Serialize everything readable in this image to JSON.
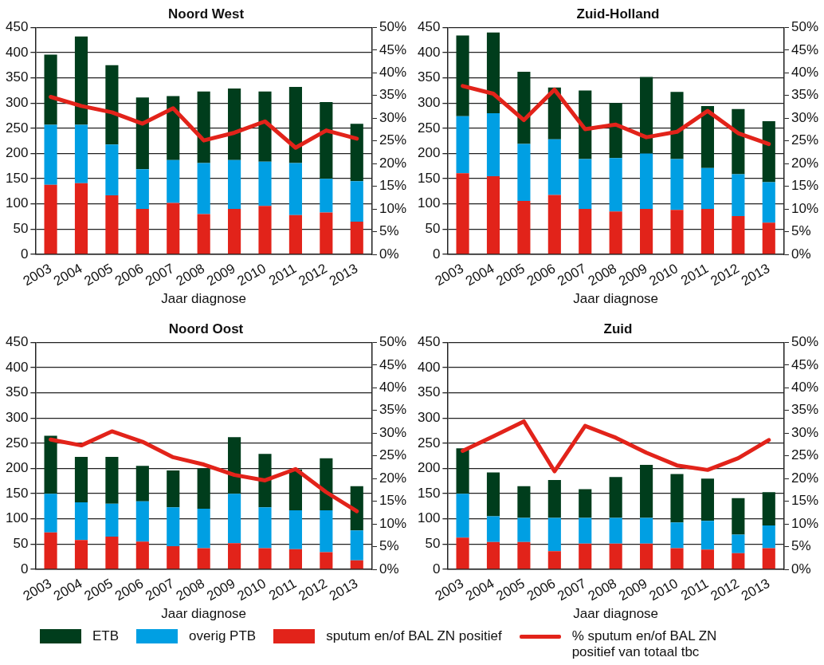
{
  "chart_data": [
    {
      "type": "bar",
      "title": "Noord West",
      "xlabel": "Jaar diagnose",
      "stacked": true,
      "grid": "y",
      "legend": "bottom",
      "categories": [
        "2003",
        "2004",
        "2005",
        "2006",
        "2007",
        "2008",
        "2009",
        "2010",
        "2011",
        "2012",
        "2013"
      ],
      "ylim": [
        0,
        450
      ],
      "yticks": [
        0,
        50,
        100,
        150,
        200,
        250,
        300,
        350,
        400,
        450
      ],
      "y2lim": [
        0,
        50
      ],
      "y2ticks": [
        {
          "value": 0,
          "label": "0%"
        },
        {
          "value": 5,
          "label": "5%"
        },
        {
          "value": 10,
          "label": "10%"
        },
        {
          "value": 15,
          "label": "15%"
        },
        {
          "value": 20,
          "label": "20%"
        },
        {
          "value": 25,
          "label": "25%"
        },
        {
          "value": 30,
          "label": "30%"
        },
        {
          "value": 35,
          "label": "35%"
        },
        {
          "value": 40,
          "label": "40%"
        },
        {
          "value": 45,
          "label": "45%"
        },
        {
          "value": 50,
          "label": "50%"
        }
      ],
      "series": [
        {
          "name": "sputum en/of BAL ZN positief",
          "color": "#e2231a",
          "values": [
            138,
            141,
            117,
            90,
            102,
            80,
            90,
            96,
            78,
            83,
            65
          ]
        },
        {
          "name": "overig PTB",
          "color": "#009fe3",
          "values": [
            119,
            116,
            101,
            79,
            85,
            101,
            97,
            88,
            103,
            67,
            80
          ]
        },
        {
          "name": "ETB",
          "color": "#003d1c",
          "values": [
            139,
            175,
            157,
            142,
            127,
            142,
            142,
            139,
            151,
            152,
            114
          ]
        },
        {
          "name": "% sputum en/of BAL ZN positief van totaal tbc",
          "type": "line",
          "axis": "y2",
          "color": "#e2231a",
          "values": [
            34.7,
            32.7,
            31.3,
            28.8,
            32.2,
            25.1,
            26.8,
            29.3,
            23.5,
            27.3,
            25.5
          ]
        }
      ]
    },
    {
      "type": "bar",
      "title": "Zuid-Holland",
      "xlabel": "Jaar diagnose",
      "stacked": true,
      "grid": "y",
      "categories": [
        "2003",
        "2004",
        "2005",
        "2006",
        "2007",
        "2008",
        "2009",
        "2010",
        "2011",
        "2012",
        "2013"
      ],
      "ylim": [
        0,
        450
      ],
      "yticks": [
        0,
        50,
        100,
        150,
        200,
        250,
        300,
        350,
        400,
        450
      ],
      "y2lim": [
        0,
        50
      ],
      "y2ticks": [
        {
          "value": 0,
          "label": "0%"
        },
        {
          "value": 5,
          "label": "5%"
        },
        {
          "value": 10,
          "label": "10%"
        },
        {
          "value": 15,
          "label": "15%"
        },
        {
          "value": 20,
          "label": "20%"
        },
        {
          "value": 25,
          "label": "25%"
        },
        {
          "value": 30,
          "label": "30%"
        },
        {
          "value": 35,
          "label": "35%"
        },
        {
          "value": 40,
          "label": "40%"
        },
        {
          "value": 45,
          "label": "45%"
        },
        {
          "value": 50,
          "label": "50%"
        }
      ],
      "series": [
        {
          "color": "#e2231a",
          "values": [
            161,
            155,
            106,
            118,
            90,
            85,
            90,
            88,
            90,
            76,
            63
          ]
        },
        {
          "color": "#009fe3",
          "values": [
            113,
            125,
            113,
            110,
            99,
            106,
            110,
            101,
            81,
            83,
            80
          ]
        },
        {
          "color": "#003d1c",
          "values": [
            160,
            160,
            143,
            103,
            136,
            109,
            152,
            133,
            123,
            129,
            121
          ]
        },
        {
          "type": "line",
          "axis": "y2",
          "color": "#e2231a",
          "values": [
            37.1,
            35.4,
            29.6,
            36.3,
            27.6,
            28.6,
            25.8,
            27.0,
            31.6,
            26.7,
            24.3
          ]
        }
      ]
    },
    {
      "type": "bar",
      "title": "Noord Oost",
      "xlabel": "Jaar diagnose",
      "stacked": true,
      "grid": "y",
      "categories": [
        "2003",
        "2004",
        "2005",
        "2006",
        "2007",
        "2008",
        "2009",
        "2010",
        "2011",
        "2012",
        "2013"
      ],
      "ylim": [
        0,
        450
      ],
      "yticks": [
        0,
        50,
        100,
        150,
        200,
        250,
        300,
        350,
        400,
        450
      ],
      "y2lim": [
        0,
        50
      ],
      "y2ticks": [
        {
          "value": 0,
          "label": "0%"
        },
        {
          "value": 5,
          "label": "5%"
        },
        {
          "value": 10,
          "label": "10%"
        },
        {
          "value": 15,
          "label": "15%"
        },
        {
          "value": 20,
          "label": "20%"
        },
        {
          "value": 25,
          "label": "25%"
        },
        {
          "value": 30,
          "label": "30%"
        },
        {
          "value": 35,
          "label": "35%"
        },
        {
          "value": 40,
          "label": "40%"
        },
        {
          "value": 45,
          "label": "45%"
        },
        {
          "value": 50,
          "label": "50%"
        }
      ],
      "series": [
        {
          "color": "#e2231a",
          "values": [
            73,
            58,
            65,
            55,
            46,
            42,
            52,
            42,
            40,
            34,
            18
          ]
        },
        {
          "color": "#009fe3",
          "values": [
            77,
            75,
            65,
            80,
            77,
            78,
            98,
            81,
            77,
            83,
            59
          ]
        },
        {
          "color": "#003d1c",
          "values": [
            115,
            90,
            93,
            70,
            73,
            80,
            112,
            106,
            81,
            103,
            88
          ]
        },
        {
          "type": "line",
          "axis": "y2",
          "color": "#e2231a",
          "values": [
            28.6,
            27.3,
            30.4,
            28.1,
            24.7,
            23.1,
            20.8,
            19.6,
            22.1,
            17.0,
            12.8
          ]
        }
      ]
    },
    {
      "type": "bar",
      "title": "Zuid",
      "xlabel": "Jaar diagnose",
      "stacked": true,
      "grid": "y",
      "categories": [
        "2003",
        "2004",
        "2005",
        "2006",
        "2007",
        "2008",
        "2009",
        "2010",
        "2011",
        "2012",
        "2013"
      ],
      "ylim": [
        0,
        450
      ],
      "yticks": [
        0,
        50,
        100,
        150,
        200,
        250,
        300,
        350,
        400,
        450
      ],
      "y2lim": [
        0,
        50
      ],
      "y2ticks": [
        {
          "value": 0,
          "label": "0%"
        },
        {
          "value": 5,
          "label": "5%"
        },
        {
          "value": 10,
          "label": "10%"
        },
        {
          "value": 15,
          "label": "15%"
        },
        {
          "value": 20,
          "label": "20%"
        },
        {
          "value": 25,
          "label": "25%"
        },
        {
          "value": 30,
          "label": "30%"
        },
        {
          "value": 35,
          "label": "35%"
        },
        {
          "value": 40,
          "label": "40%"
        },
        {
          "value": 45,
          "label": "45%"
        },
        {
          "value": 50,
          "label": "50%"
        }
      ],
      "series": [
        {
          "color": "#e2231a",
          "values": [
            63,
            54,
            54,
            36,
            51,
            51,
            51,
            42,
            39,
            32,
            42
          ]
        },
        {
          "color": "#009fe3",
          "values": [
            87,
            51,
            48,
            66,
            51,
            51,
            51,
            51,
            57,
            37,
            45
          ]
        },
        {
          "color": "#003d1c",
          "values": [
            90,
            87,
            63,
            75,
            57,
            81,
            105,
            96,
            84,
            72,
            66
          ]
        },
        {
          "type": "line",
          "axis": "y2",
          "color": "#e2231a",
          "values": [
            26.1,
            29.3,
            32.6,
            21.6,
            31.6,
            29.0,
            25.7,
            22.9,
            21.9,
            24.5,
            28.5
          ]
        }
      ]
    }
  ]
}
